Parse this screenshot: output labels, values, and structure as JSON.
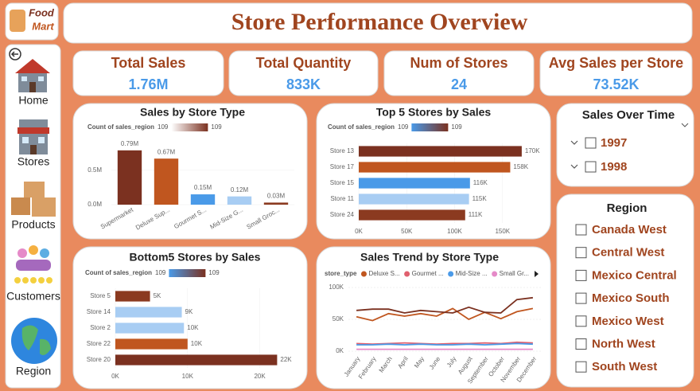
{
  "logo": [
    "Food",
    "Mart"
  ],
  "header": {
    "title": "Store Performance Overview"
  },
  "nav": [
    "Home",
    "Stores",
    "Products",
    "Customers",
    "Region"
  ],
  "kpis": [
    {
      "label": "Total Sales",
      "value": "1.76M"
    },
    {
      "label": "Total Quantity",
      "value": "833K"
    },
    {
      "label": "Num of Stores",
      "value": "24"
    },
    {
      "label": "Avg Sales per Store",
      "value": "73.52K"
    }
  ],
  "chart_data": [
    {
      "type": "bar",
      "orientation": "vertical",
      "title": "Sales by Store Type",
      "legend": {
        "title": "Count of sales_region",
        "min": 109,
        "max": 109,
        "colors": [
          "#ffffff",
          "#7b3120"
        ]
      },
      "categories": [
        "Supermarket",
        "Deluxe Sup...",
        "Gourmet S...",
        "Mid-Size G...",
        "Small Groc..."
      ],
      "values": [
        790000,
        670000,
        150000,
        120000,
        30000
      ],
      "value_labels": [
        "0.79M",
        "0.67M",
        "0.15M",
        "0.12M",
        "0.03M"
      ],
      "colors": [
        "#7b3120",
        "#c0561f",
        "#4a9ae8",
        "#a8cdf3",
        "#8b3a20"
      ],
      "ylim": [
        0,
        950000
      ],
      "yticks": [
        {
          "value": 0,
          "label": "0.0M"
        },
        {
          "value": 500000,
          "label": "0.5M"
        }
      ]
    },
    {
      "type": "bar",
      "orientation": "horizontal",
      "title": "Top 5 Stores by Sales",
      "legend": {
        "title": "Count of sales_region",
        "min": 109,
        "max": 109,
        "colors": [
          "#4a9ae8",
          "#7b3120"
        ]
      },
      "categories": [
        "Store 13",
        "Store 17",
        "Store 15",
        "Store 11",
        "Store 24"
      ],
      "values": [
        170000,
        158000,
        116000,
        115000,
        111000
      ],
      "value_labels": [
        "170K",
        "158K",
        "116K",
        "115K",
        "111K"
      ],
      "colors": [
        "#7b3120",
        "#c0561f",
        "#4a9ae8",
        "#a8cdf3",
        "#8b3a20"
      ],
      "xlim": [
        0,
        190000
      ],
      "xticks": [
        {
          "value": 0,
          "label": "0K"
        },
        {
          "value": 50000,
          "label": "50K"
        },
        {
          "value": 100000,
          "label": "100K"
        },
        {
          "value": 150000,
          "label": "150K"
        }
      ]
    },
    {
      "type": "bar",
      "orientation": "horizontal",
      "title": "Bottom5 Stores by Sales",
      "legend": {
        "title": "Count of sales_region",
        "min": 109,
        "max": 109,
        "colors": [
          "#4a9ae8",
          "#7b3120"
        ]
      },
      "categories": [
        "Store 5",
        "Store 14",
        "Store 2",
        "Store 22",
        "Store 20"
      ],
      "values": [
        4800,
        9200,
        9500,
        10000,
        22400
      ],
      "value_labels": [
        "5K",
        "9K",
        "10K",
        "10K",
        "22K"
      ],
      "colors": [
        "#8b3a20",
        "#a8cdf3",
        "#a8cdf3",
        "#c0561f",
        "#7b3120"
      ],
      "xlim": [
        0,
        25000
      ],
      "xticks": [
        {
          "value": 0,
          "label": "0K"
        },
        {
          "value": 10000,
          "label": "10K"
        },
        {
          "value": 20000,
          "label": "20K"
        }
      ]
    },
    {
      "type": "line",
      "title": "Sales Trend by Store Type",
      "legend_title": "store_type",
      "categories": [
        "January",
        "February",
        "March",
        "April",
        "May",
        "June",
        "July",
        "August",
        "September",
        "October",
        "November",
        "December"
      ],
      "series": [
        {
          "name": "Deluxe S...",
          "color": "#c0561f",
          "values": [
            54000,
            48000,
            59000,
            55000,
            59000,
            55000,
            67000,
            50000,
            61000,
            51000,
            62000,
            67000
          ]
        },
        {
          "name": "Gourmet ...",
          "color": "#e0606e",
          "values": [
            12000,
            11000,
            12000,
            13000,
            12000,
            11000,
            12000,
            12000,
            13000,
            12000,
            14000,
            13000
          ]
        },
        {
          "name": "Mid-Size ...",
          "color": "#4a9ae8",
          "values": [
            10000,
            10000,
            11000,
            10000,
            11000,
            10000,
            10000,
            11000,
            10000,
            11000,
            12000,
            11000
          ]
        },
        {
          "name": "Small Gr...",
          "color": "#e58ac8",
          "values": [
            3000,
            3000,
            3000,
            3000,
            3000,
            3000,
            3000,
            3000,
            3000,
            3000,
            3000,
            3000
          ]
        },
        {
          "name": null,
          "color": "#7b3120",
          "values": [
            64000,
            66000,
            66000,
            60000,
            64000,
            62000,
            60000,
            69000,
            61000,
            60000,
            81000,
            84000
          ]
        }
      ],
      "ylim": [
        0,
        110000
      ],
      "yticks": [
        {
          "value": 0,
          "label": "0K"
        },
        {
          "value": 50000,
          "label": "50K"
        },
        {
          "value": 100000,
          "label": "100K"
        }
      ]
    }
  ],
  "slicers": [
    {
      "title": "Sales Over Time",
      "items": [
        "1997",
        "1998"
      ]
    },
    {
      "title": "Region",
      "items": [
        "Canada West",
        "Central West",
        "Mexico Central",
        "Mexico South",
        "Mexico West",
        "North West",
        "South West"
      ]
    }
  ]
}
